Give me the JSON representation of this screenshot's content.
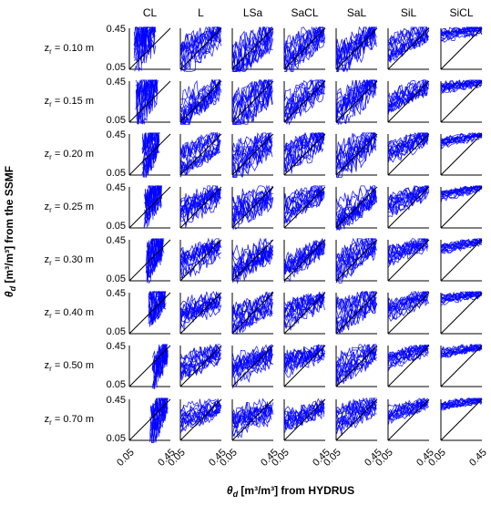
{
  "chart_data": {
    "type": "scatter",
    "layout": "small-multiples grid",
    "columns": [
      "CL",
      "L",
      "LSa",
      "SaCL",
      "SaL",
      "SiL",
      "SiCL"
    ],
    "rows": [
      "z_r = 0.10 m",
      "z_r = 0.15 m",
      "z_r = 0.20 m",
      "z_r = 0.25 m",
      "z_r = 0.30 m",
      "z_r = 0.40 m",
      "z_r = 0.50 m",
      "z_r = 0.70 m"
    ],
    "row_labels": [
      {
        "base": "z",
        "sub": "r",
        "text": " = 0.10 m"
      },
      {
        "base": "z",
        "sub": "r",
        "text": " = 0.15 m"
      },
      {
        "base": "z",
        "sub": "r",
        "text": " = 0.20 m"
      },
      {
        "base": "z",
        "sub": "r",
        "text": " = 0.25 m"
      },
      {
        "base": "z",
        "sub": "r",
        "text": " = 0.30 m"
      },
      {
        "base": "z",
        "sub": "r",
        "text": " = 0.40 m"
      },
      {
        "base": "z",
        "sub": "r",
        "text": " = 0.50 m"
      },
      {
        "base": "z",
        "sub": "r",
        "text": " = 0.70 m"
      }
    ],
    "xlim": [
      0.05,
      0.45
    ],
    "ylim": [
      0.05,
      0.45
    ],
    "xticks": [
      "0.05",
      "0.45"
    ],
    "yticks": [
      "0.05",
      "0.45"
    ],
    "xlabel": {
      "symbol": "θ",
      "sub": "d",
      "text": " [m³/m³] from HYDRUS"
    },
    "ylabel": {
      "symbol": "θ",
      "sub": "d",
      "text": " [m³/m³] from the SSMF"
    },
    "series_color": "#0000ff",
    "reference_line": "1:1 line",
    "reference_color": "#000000",
    "grid": false,
    "legend": "none",
    "point_clouds": {
      "CL": [
        [
          0.1,
          0.3,
          0.25,
          0.4,
          0.4
        ],
        [
          0.12,
          0.32,
          0.22,
          0.4,
          0.4
        ],
        [
          0.18,
          0.34,
          0.18,
          0.42,
          0.38
        ],
        [
          0.2,
          0.36,
          0.2,
          0.42,
          0.34
        ],
        [
          0.22,
          0.38,
          0.22,
          0.42,
          0.34
        ],
        [
          0.24,
          0.4,
          0.28,
          0.42,
          0.32
        ],
        [
          0.28,
          0.42,
          0.22,
          0.44,
          0.34
        ],
        [
          0.26,
          0.42,
          0.18,
          0.44,
          0.34
        ]
      ],
      "L": [
        [
          0.05,
          0.44,
          0.16,
          0.42,
          0.3
        ],
        [
          0.05,
          0.44,
          0.16,
          0.42,
          0.28
        ],
        [
          0.05,
          0.44,
          0.18,
          0.4,
          0.26
        ],
        [
          0.05,
          0.44,
          0.2,
          0.38,
          0.25
        ],
        [
          0.05,
          0.44,
          0.2,
          0.38,
          0.24
        ],
        [
          0.05,
          0.44,
          0.24,
          0.38,
          0.22
        ],
        [
          0.05,
          0.44,
          0.24,
          0.38,
          0.22
        ],
        [
          0.05,
          0.44,
          0.26,
          0.38,
          0.2
        ]
      ],
      "LSa": [
        [
          0.05,
          0.44,
          0.1,
          0.4,
          0.34
        ],
        [
          0.05,
          0.44,
          0.12,
          0.4,
          0.32
        ],
        [
          0.05,
          0.44,
          0.16,
          0.38,
          0.3
        ],
        [
          0.05,
          0.44,
          0.18,
          0.36,
          0.28
        ],
        [
          0.05,
          0.44,
          0.18,
          0.36,
          0.28
        ],
        [
          0.05,
          0.44,
          0.2,
          0.36,
          0.26
        ],
        [
          0.05,
          0.44,
          0.2,
          0.36,
          0.26
        ],
        [
          0.05,
          0.44,
          0.22,
          0.34,
          0.24
        ]
      ],
      "SaCL": [
        [
          0.05,
          0.44,
          0.14,
          0.42,
          0.28
        ],
        [
          0.05,
          0.44,
          0.16,
          0.42,
          0.26
        ],
        [
          0.05,
          0.44,
          0.18,
          0.4,
          0.26
        ],
        [
          0.05,
          0.44,
          0.2,
          0.4,
          0.24
        ],
        [
          0.05,
          0.44,
          0.2,
          0.4,
          0.24
        ],
        [
          0.05,
          0.44,
          0.22,
          0.38,
          0.22
        ],
        [
          0.05,
          0.44,
          0.24,
          0.38,
          0.22
        ],
        [
          0.05,
          0.44,
          0.26,
          0.38,
          0.2
        ]
      ],
      "SaL": [
        [
          0.05,
          0.44,
          0.12,
          0.44,
          0.34
        ],
        [
          0.05,
          0.44,
          0.14,
          0.44,
          0.32
        ],
        [
          0.05,
          0.44,
          0.16,
          0.42,
          0.3
        ],
        [
          0.05,
          0.44,
          0.18,
          0.42,
          0.28
        ],
        [
          0.05,
          0.44,
          0.18,
          0.42,
          0.28
        ],
        [
          0.05,
          0.44,
          0.2,
          0.4,
          0.26
        ],
        [
          0.05,
          0.44,
          0.22,
          0.4,
          0.24
        ],
        [
          0.05,
          0.44,
          0.24,
          0.4,
          0.22
        ]
      ],
      "SiL": [
        [
          0.05,
          0.44,
          0.24,
          0.42,
          0.2
        ],
        [
          0.05,
          0.44,
          0.24,
          0.42,
          0.2
        ],
        [
          0.05,
          0.44,
          0.26,
          0.42,
          0.18
        ],
        [
          0.05,
          0.44,
          0.26,
          0.42,
          0.18
        ],
        [
          0.05,
          0.44,
          0.28,
          0.42,
          0.16
        ],
        [
          0.05,
          0.44,
          0.28,
          0.42,
          0.16
        ],
        [
          0.05,
          0.44,
          0.3,
          0.42,
          0.14
        ],
        [
          0.05,
          0.44,
          0.3,
          0.42,
          0.14
        ]
      ],
      "SiCL": [
        [
          0.05,
          0.45,
          0.38,
          0.44,
          0.1
        ],
        [
          0.05,
          0.45,
          0.38,
          0.44,
          0.1
        ],
        [
          0.05,
          0.45,
          0.36,
          0.44,
          0.08
        ],
        [
          0.05,
          0.45,
          0.36,
          0.44,
          0.08
        ],
        [
          0.05,
          0.45,
          0.36,
          0.44,
          0.08
        ],
        [
          0.05,
          0.45,
          0.38,
          0.44,
          0.08
        ],
        [
          0.05,
          0.45,
          0.38,
          0.44,
          0.08
        ],
        [
          0.05,
          0.45,
          0.38,
          0.44,
          0.08
        ]
      ]
    },
    "point_cloud_format": "[x_min, x_max, y_at_x_min, y_at_x_max, y_spread] per row, data units"
  }
}
